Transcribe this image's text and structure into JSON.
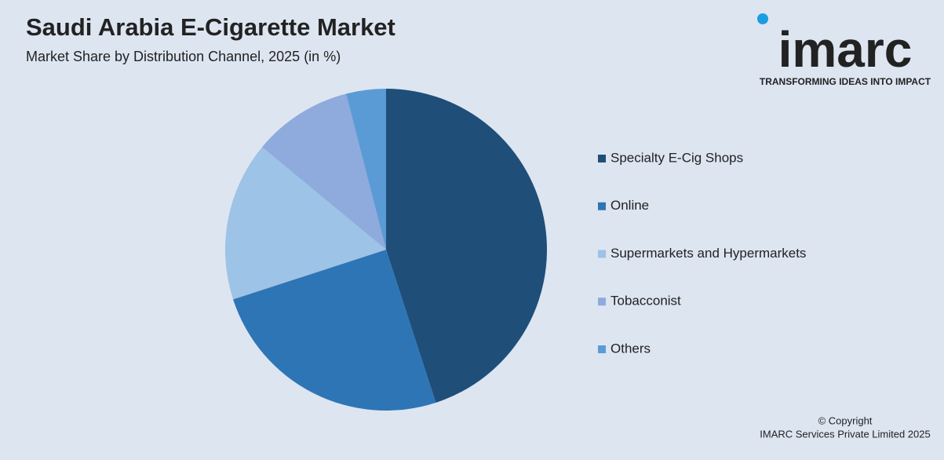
{
  "chart_data": {
    "type": "pie",
    "title": "Saudi Arabia E-Cigarette Market",
    "subtitle": "Market Share by Distribution Channel, 2025 (in %)",
    "categories": [
      "Specialty E-Cig Shops",
      "Online",
      "Supermarkets and Hypermarkets",
      "Tobacconist",
      "Others"
    ],
    "values": [
      45,
      25,
      16,
      10,
      4
    ],
    "colors": [
      "#1f4e79",
      "#2e75b6",
      "#9dc3e6",
      "#8faadc",
      "#5b9bd5"
    ],
    "legend": "right"
  },
  "logo": {
    "name": "imarc",
    "tagline": "TRANSFORMING IDEAS INTO IMPACT"
  },
  "copyright": {
    "line1": "© Copyright",
    "line2": "IMARC Services Private Limited 2025"
  }
}
